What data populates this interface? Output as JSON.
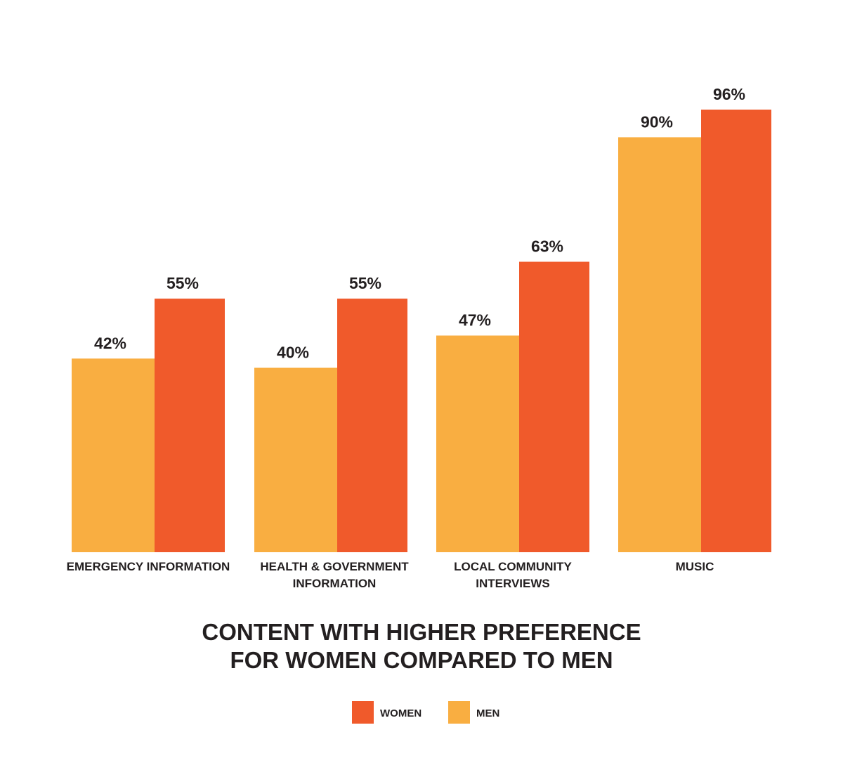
{
  "chart_data": {
    "type": "bar",
    "title": "CONTENT WITH HIGHER PREFERENCE FOR WOMEN COMPARED TO MEN",
    "categories": [
      "EMERGENCY INFORMATION",
      "HEALTH & GOVERNMENT INFORMATION",
      "LOCAL COMMUNITY INTERVIEWS",
      "MUSIC"
    ],
    "series": [
      {
        "name": "WOMEN",
        "color": "#f05a2b",
        "values": [
          55,
          55,
          63,
          96
        ],
        "value_labels": [
          "55%",
          "55%",
          "63%",
          "96%"
        ]
      },
      {
        "name": "MEN",
        "color": "#f9ae41",
        "values": [
          42,
          40,
          47,
          90
        ],
        "value_labels": [
          "42%",
          "40%",
          "47%",
          "90%"
        ]
      }
    ]
  }
}
